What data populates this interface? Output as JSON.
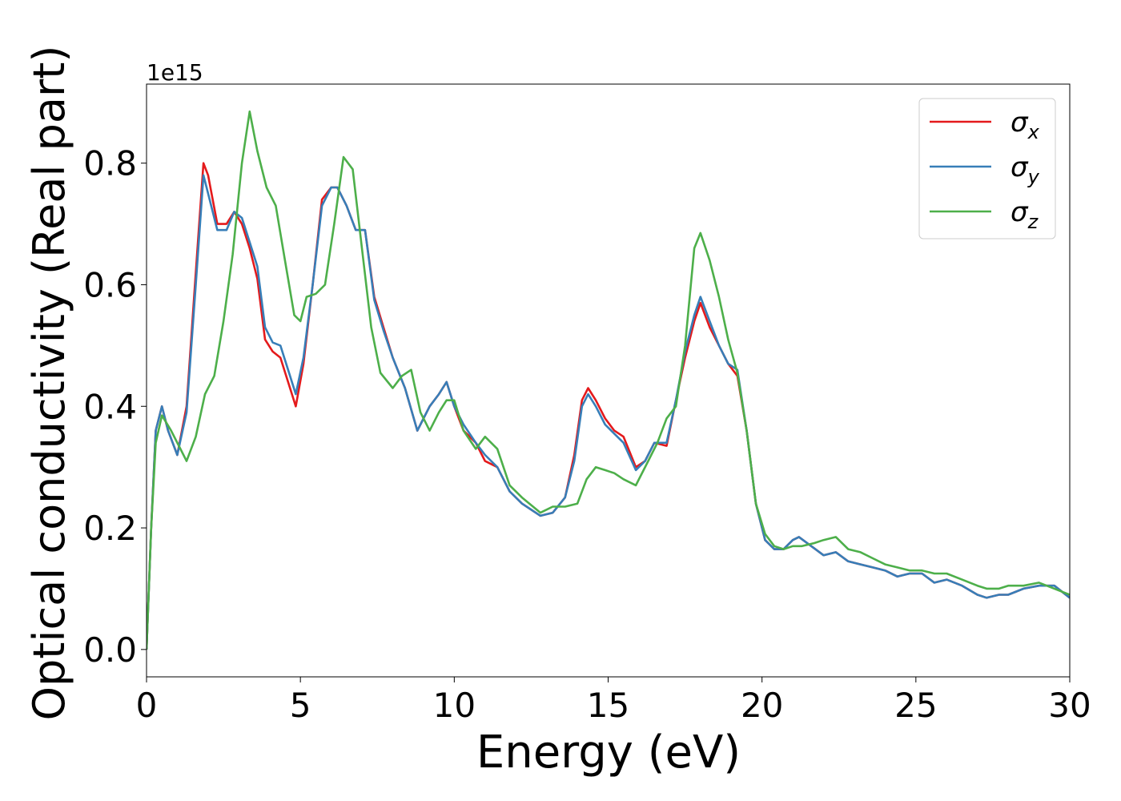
{
  "chart_data": {
    "type": "line",
    "title": "",
    "xlabel": "Energy (eV)",
    "ylabel": "Optical conductivity (Real part)",
    "y_offset_text": "1e15",
    "xlim": [
      0,
      30
    ],
    "ylim": [
      -0.045,
      0.93
    ],
    "x_ticks": [
      0,
      5,
      10,
      15,
      20,
      25,
      30
    ],
    "y_ticks": [
      0.0,
      0.2,
      0.4,
      0.6,
      0.8
    ],
    "grid": false,
    "legend_position": "top-right",
    "series": [
      {
        "name": "σx",
        "name_base": "σ",
        "name_sub": "x",
        "color": "#e41a1c",
        "x": [
          0,
          0.15,
          0.3,
          0.5,
          0.7,
          1.0,
          1.3,
          1.6,
          1.85,
          2.0,
          2.3,
          2.6,
          2.85,
          3.1,
          3.35,
          3.6,
          3.85,
          4.1,
          4.35,
          4.6,
          4.85,
          5.1,
          5.4,
          5.7,
          6.0,
          6.2,
          6.5,
          6.8,
          7.1,
          7.4,
          7.7,
          8.0,
          8.4,
          8.8,
          9.2,
          9.5,
          9.75,
          10.0,
          10.3,
          10.7,
          11.0,
          11.4,
          11.8,
          12.2,
          12.8,
          13.2,
          13.6,
          13.9,
          14.15,
          14.35,
          14.6,
          14.9,
          15.2,
          15.5,
          15.9,
          16.2,
          16.5,
          16.9,
          17.2,
          17.5,
          17.8,
          18.0,
          18.3,
          18.6,
          18.9,
          19.2,
          19.5,
          19.8,
          20.1,
          20.4,
          20.7,
          21.0,
          21.2,
          21.6,
          22.0,
          22.4,
          22.8,
          23.2,
          23.6,
          24.0,
          24.4,
          24.8,
          25.2,
          25.6,
          26.0,
          26.5,
          27.0,
          27.3,
          27.7,
          28.0,
          28.5,
          29.0,
          29.5,
          30.0
        ],
        "y": [
          0.0,
          0.2,
          0.36,
          0.4,
          0.36,
          0.32,
          0.4,
          0.62,
          0.8,
          0.78,
          0.7,
          0.7,
          0.72,
          0.7,
          0.66,
          0.61,
          0.51,
          0.49,
          0.48,
          0.44,
          0.4,
          0.47,
          0.6,
          0.74,
          0.76,
          0.76,
          0.73,
          0.69,
          0.69,
          0.58,
          0.53,
          0.48,
          0.43,
          0.36,
          0.4,
          0.42,
          0.44,
          0.4,
          0.36,
          0.34,
          0.31,
          0.3,
          0.26,
          0.24,
          0.22,
          0.225,
          0.25,
          0.32,
          0.41,
          0.43,
          0.41,
          0.38,
          0.36,
          0.35,
          0.3,
          0.31,
          0.34,
          0.335,
          0.41,
          0.48,
          0.54,
          0.57,
          0.53,
          0.5,
          0.47,
          0.45,
          0.36,
          0.24,
          0.18,
          0.165,
          0.165,
          0.18,
          0.185,
          0.17,
          0.155,
          0.16,
          0.145,
          0.14,
          0.135,
          0.13,
          0.12,
          0.125,
          0.125,
          0.11,
          0.115,
          0.105,
          0.09,
          0.085,
          0.09,
          0.09,
          0.1,
          0.105,
          0.105,
          0.085
        ]
      },
      {
        "name": "σy",
        "name_base": "σ",
        "name_sub": "y",
        "color": "#377eb8",
        "x": [
          0,
          0.15,
          0.3,
          0.5,
          0.7,
          1.0,
          1.3,
          1.6,
          1.85,
          2.0,
          2.3,
          2.6,
          2.85,
          3.1,
          3.35,
          3.6,
          3.85,
          4.1,
          4.35,
          4.6,
          4.85,
          5.1,
          5.4,
          5.7,
          6.0,
          6.2,
          6.5,
          6.8,
          7.1,
          7.4,
          7.7,
          8.0,
          8.4,
          8.8,
          9.2,
          9.5,
          9.75,
          10.0,
          10.3,
          10.7,
          11.0,
          11.4,
          11.8,
          12.2,
          12.8,
          13.2,
          13.6,
          13.9,
          14.15,
          14.35,
          14.6,
          14.9,
          15.2,
          15.5,
          15.9,
          16.2,
          16.5,
          16.9,
          17.2,
          17.5,
          17.8,
          18.0,
          18.3,
          18.6,
          18.9,
          19.2,
          19.5,
          19.8,
          20.1,
          20.4,
          20.7,
          21.0,
          21.2,
          21.6,
          22.0,
          22.4,
          22.8,
          23.2,
          23.6,
          24.0,
          24.4,
          24.8,
          25.2,
          25.6,
          26.0,
          26.5,
          27.0,
          27.3,
          27.7,
          28.0,
          28.5,
          29.0,
          29.5,
          30.0
        ],
        "y": [
          0.0,
          0.2,
          0.36,
          0.4,
          0.36,
          0.32,
          0.39,
          0.6,
          0.78,
          0.75,
          0.69,
          0.69,
          0.72,
          0.71,
          0.67,
          0.63,
          0.53,
          0.505,
          0.5,
          0.46,
          0.42,
          0.48,
          0.6,
          0.73,
          0.76,
          0.76,
          0.73,
          0.69,
          0.69,
          0.575,
          0.525,
          0.48,
          0.43,
          0.36,
          0.4,
          0.42,
          0.44,
          0.4,
          0.37,
          0.34,
          0.32,
          0.3,
          0.26,
          0.24,
          0.22,
          0.225,
          0.25,
          0.31,
          0.4,
          0.42,
          0.4,
          0.37,
          0.355,
          0.34,
          0.295,
          0.31,
          0.34,
          0.34,
          0.41,
          0.49,
          0.55,
          0.58,
          0.54,
          0.5,
          0.47,
          0.46,
          0.36,
          0.24,
          0.18,
          0.165,
          0.165,
          0.18,
          0.185,
          0.17,
          0.155,
          0.16,
          0.145,
          0.14,
          0.135,
          0.13,
          0.12,
          0.125,
          0.125,
          0.11,
          0.115,
          0.105,
          0.09,
          0.085,
          0.09,
          0.09,
          0.1,
          0.105,
          0.105,
          0.085
        ]
      },
      {
        "name": "σz",
        "name_base": "σ",
        "name_sub": "z",
        "color": "#4daf4a",
        "x": [
          0,
          0.15,
          0.3,
          0.5,
          0.8,
          1.1,
          1.3,
          1.6,
          1.9,
          2.2,
          2.5,
          2.8,
          3.1,
          3.35,
          3.6,
          3.9,
          4.2,
          4.5,
          4.8,
          5.0,
          5.2,
          5.5,
          5.8,
          6.1,
          6.4,
          6.7,
          7.0,
          7.3,
          7.6,
          8.0,
          8.3,
          8.6,
          8.9,
          9.2,
          9.5,
          9.75,
          10.0,
          10.3,
          10.7,
          11.0,
          11.4,
          11.8,
          12.2,
          12.8,
          13.2,
          13.6,
          14.0,
          14.3,
          14.6,
          14.9,
          15.2,
          15.5,
          15.9,
          16.3,
          16.6,
          16.9,
          17.2,
          17.5,
          17.8,
          18.0,
          18.3,
          18.6,
          18.9,
          19.2,
          19.5,
          19.8,
          20.1,
          20.4,
          20.7,
          21.0,
          21.3,
          21.7,
          22.0,
          22.4,
          22.8,
          23.2,
          23.6,
          24.0,
          24.4,
          24.8,
          25.2,
          25.6,
          26.0,
          26.5,
          27.0,
          27.3,
          27.7,
          28.0,
          28.5,
          29.0,
          29.5,
          30.0
        ],
        "y": [
          0.0,
          0.2,
          0.34,
          0.385,
          0.36,
          0.33,
          0.31,
          0.35,
          0.42,
          0.45,
          0.54,
          0.65,
          0.8,
          0.885,
          0.82,
          0.76,
          0.73,
          0.64,
          0.55,
          0.54,
          0.58,
          0.585,
          0.6,
          0.7,
          0.81,
          0.79,
          0.66,
          0.53,
          0.455,
          0.43,
          0.45,
          0.46,
          0.39,
          0.36,
          0.39,
          0.41,
          0.41,
          0.36,
          0.33,
          0.35,
          0.33,
          0.27,
          0.25,
          0.225,
          0.235,
          0.235,
          0.24,
          0.28,
          0.3,
          0.295,
          0.29,
          0.28,
          0.27,
          0.31,
          0.34,
          0.38,
          0.4,
          0.5,
          0.66,
          0.685,
          0.64,
          0.58,
          0.51,
          0.455,
          0.36,
          0.24,
          0.19,
          0.17,
          0.165,
          0.17,
          0.17,
          0.175,
          0.18,
          0.185,
          0.165,
          0.16,
          0.15,
          0.14,
          0.135,
          0.13,
          0.13,
          0.125,
          0.125,
          0.115,
          0.105,
          0.1,
          0.1,
          0.105,
          0.105,
          0.11,
          0.1,
          0.09
        ]
      }
    ]
  }
}
